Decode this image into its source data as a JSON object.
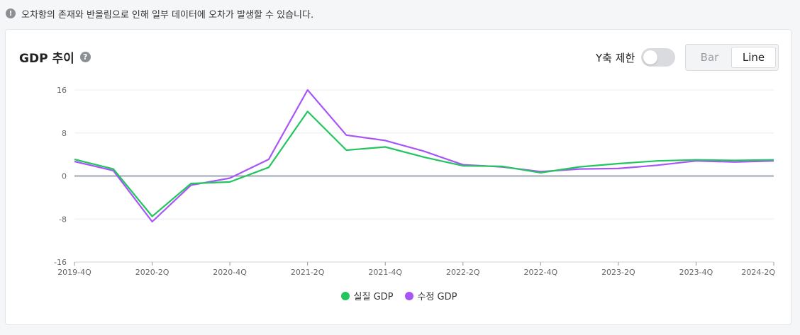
{
  "notice": {
    "icon": "exclamation-icon",
    "text": "오차항의 존재와 반올림으로 인해 일부 데이터에 오차가 발생할 수 있습니다."
  },
  "card": {
    "title": "GDP 추이",
    "help_icon": "question-icon",
    "help_glyph": "?",
    "yaxis_limit_label": "Y축 제한",
    "yaxis_limit_on": false,
    "chart_type_options": [
      "Bar",
      "Line"
    ],
    "chart_type_selected": "Line"
  },
  "colors": {
    "real_gdp": "#22c55e",
    "revised_gdp": "#a855f7",
    "zero_line": "#9ca3af",
    "grid": "#ececec"
  },
  "chart_data": {
    "type": "line",
    "categories": [
      "2019-4Q",
      "2020-1Q",
      "2020-2Q",
      "2020-3Q",
      "2020-4Q",
      "2021-1Q",
      "2021-2Q",
      "2021-3Q",
      "2021-4Q",
      "2022-1Q",
      "2022-2Q",
      "2022-3Q",
      "2022-4Q",
      "2023-1Q",
      "2023-2Q",
      "2023-3Q",
      "2023-4Q",
      "2024-1Q",
      "2024-2Q"
    ],
    "tick_labels": [
      "2019-4Q",
      "2020-2Q",
      "2020-4Q",
      "2021-2Q",
      "2021-4Q",
      "2022-2Q",
      "2022-4Q",
      "2023-2Q",
      "2023-4Q",
      "2024-2Q"
    ],
    "tick_indices": [
      0,
      2,
      4,
      6,
      8,
      10,
      12,
      14,
      16,
      18
    ],
    "y_ticks": [
      16,
      8,
      0,
      -8,
      -16
    ],
    "ylim": [
      -16,
      16
    ],
    "grid": true,
    "legend_position": "bottom",
    "series": [
      {
        "name": "실질 GDP",
        "values": [
          3.1,
          1.3,
          -7.5,
          -1.4,
          -1.1,
          1.6,
          12.0,
          4.8,
          5.4,
          3.5,
          1.9,
          1.8,
          0.6,
          1.7,
          2.3,
          2.8,
          3.0,
          2.9,
          3.0
        ]
      },
      {
        "name": "수정 GDP",
        "values": [
          2.7,
          1.0,
          -8.5,
          -1.7,
          -0.4,
          3.1,
          16.0,
          7.6,
          6.6,
          4.6,
          2.1,
          1.7,
          0.8,
          1.3,
          1.4,
          2.0,
          2.8,
          2.6,
          2.8
        ]
      }
    ]
  }
}
